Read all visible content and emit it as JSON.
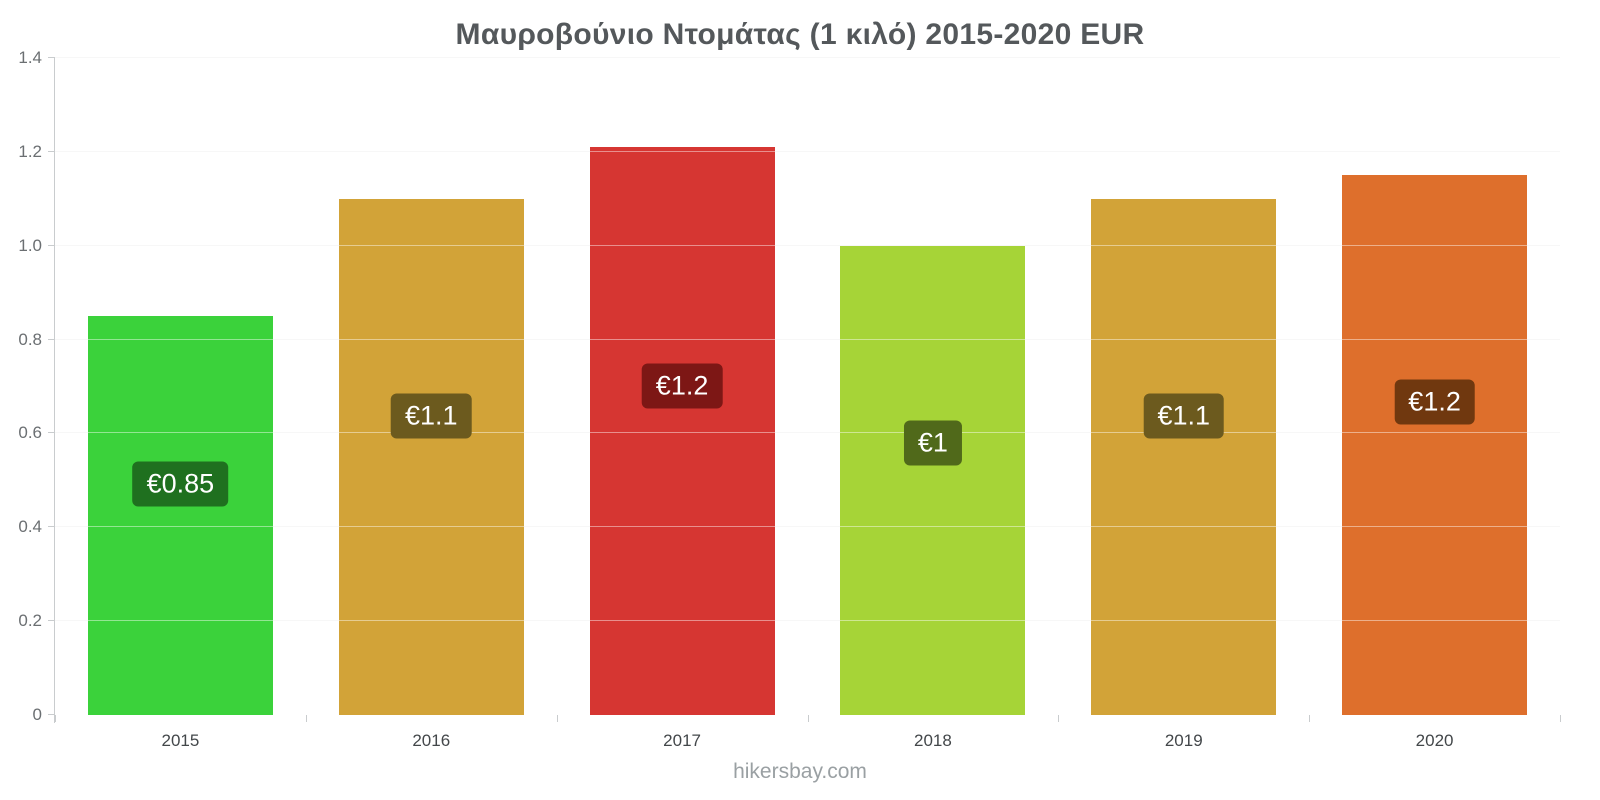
{
  "title": "Μαυροβούνιο Ντομάτας (1 κιλό) 2015-2020 EUR",
  "footer": {
    "link_label": "hikersbay.com"
  },
  "chart_data": {
    "type": "bar",
    "title": "Μαυροβούνιο Ντομάτας (1 κιλό) 2015-2020 EUR",
    "xlabel": "",
    "ylabel": "",
    "categories": [
      "2015",
      "2016",
      "2017",
      "2018",
      "2019",
      "2020"
    ],
    "values": [
      0.85,
      1.1,
      1.21,
      1.0,
      1.1,
      1.15
    ],
    "bar_labels": [
      "€0.85",
      "€1.1",
      "€1.2",
      "€1",
      "€1.1",
      "€1.2"
    ],
    "bar_colors": [
      "#3bd23b",
      "#d2a338",
      "#d63632",
      "#a6d437",
      "#d2a338",
      "#de6f2c"
    ],
    "bar_label_bg_colors": [
      "#1f701f",
      "#6c5a1e",
      "#7d1715",
      "#50691a",
      "#6c5a1e",
      "#70380f"
    ],
    "ylim": [
      0,
      1.4
    ],
    "yticks": [
      0,
      0.2,
      0.4,
      0.6,
      0.8,
      1.0,
      1.2,
      1.4
    ],
    "ytick_labels": [
      "0",
      "0.2",
      "0.4",
      "0.6",
      "0.8",
      "1.0",
      "1.2",
      "1.4"
    ],
    "grid": true,
    "legend": false,
    "currency": "EUR"
  }
}
